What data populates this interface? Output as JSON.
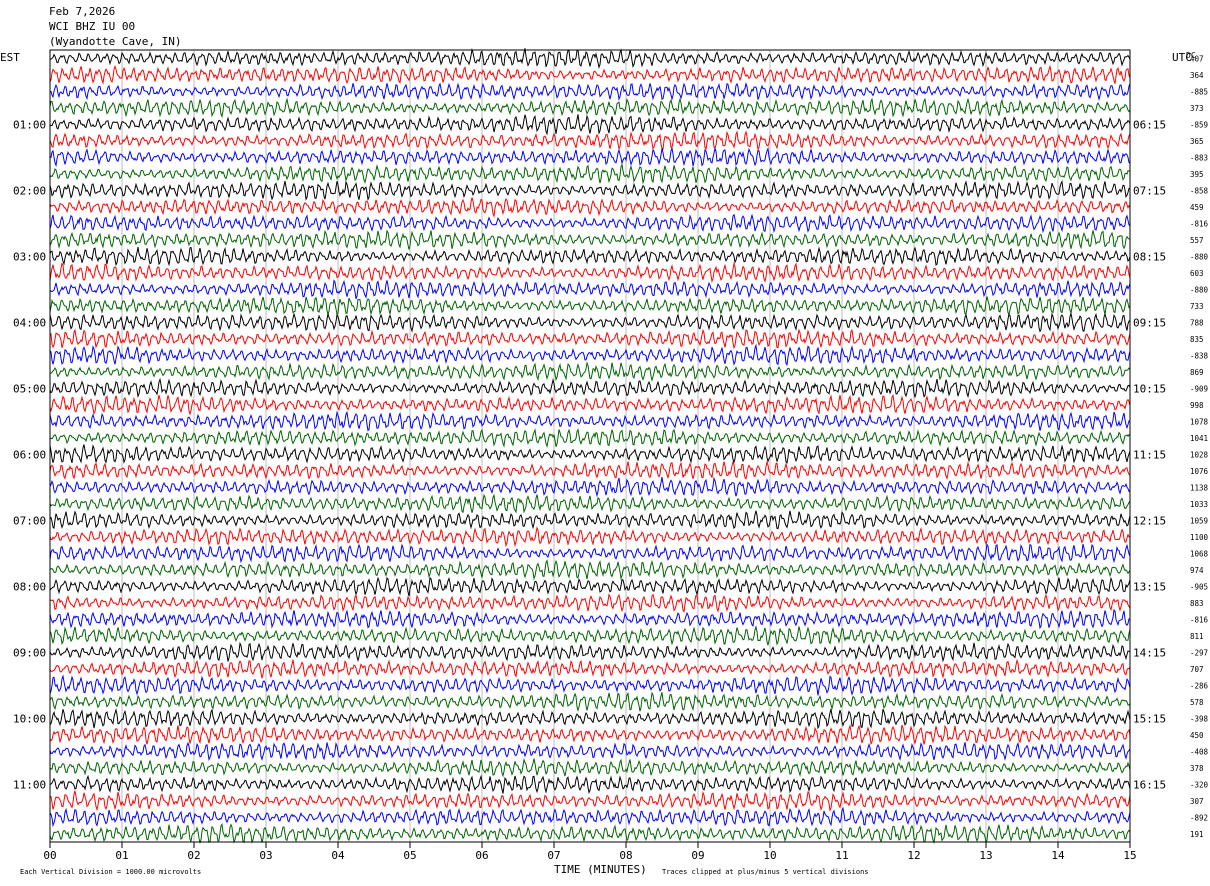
{
  "header": {
    "date": "Feb 7,2026",
    "station": "WCI BHZ IU 00",
    "location": "(Wyandotte Cave, IN)"
  },
  "footer": {
    "scale_note": "Each Vertical Division = 1000.00 microvolts",
    "clip_note": "Traces clipped at plus/minus 5 vertical divisions"
  },
  "chart_data": {
    "type": "line",
    "title": "",
    "xlabel": "TIME (MINUTES)",
    "ylabel_left": "EST",
    "ylabel_right": "UTC",
    "dc_label": "DC",
    "xlim": [
      0,
      15
    ],
    "x_ticks": [
      "00",
      "01",
      "02",
      "03",
      "04",
      "05",
      "06",
      "07",
      "08",
      "09",
      "10",
      "11",
      "12",
      "13",
      "14",
      "15"
    ],
    "grid": "vertical lines at each minute",
    "trace_colors": [
      "#000000",
      "#ff0000",
      "#0000ff",
      "#006400"
    ],
    "est_labels": [
      "01:00",
      "02:00",
      "03:00",
      "04:00",
      "05:00",
      "06:00",
      "07:00",
      "08:00",
      "09:00",
      "10:00",
      "11:00"
    ],
    "utc_labels": [
      "06:15",
      "07:15",
      "08:15",
      "09:15",
      "10:15",
      "11:15",
      "12:15",
      "13:15",
      "14:15",
      "15:15",
      "16:15"
    ],
    "hour_label_first_row": [
      4,
      8,
      12,
      16,
      20,
      24,
      28,
      32,
      36,
      40,
      44
    ],
    "traces_per_page": 48,
    "dc_values": [
      "407",
      "364",
      "-885",
      "373",
      "-859",
      "365",
      "-883",
      "395",
      "-858",
      "459",
      "-816",
      "557",
      "-880",
      "603",
      "-880",
      "733",
      "788",
      "835",
      "-838",
      "869",
      "-909",
      "998",
      "1078",
      "1041",
      "1028",
      "1076",
      "1138",
      "1033",
      "1059",
      "1100",
      "1068",
      "974",
      "-905",
      "883",
      "-816",
      "811",
      "-297",
      "707",
      "-286",
      "578",
      "-398",
      "450",
      "-408",
      "378",
      "-320",
      "307",
      "-892",
      "191"
    ]
  }
}
